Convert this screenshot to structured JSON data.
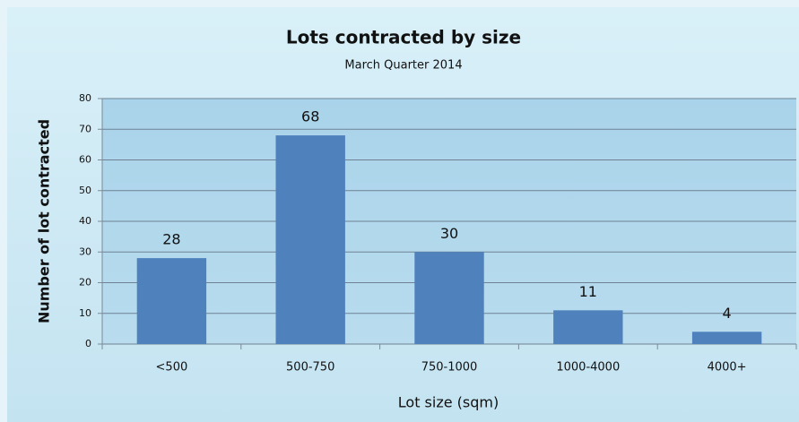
{
  "chart_data": {
    "type": "bar",
    "title": "Lots contracted by size",
    "subtitle": "March Quarter 2014",
    "x_label": "Lot size (sqm)",
    "y_label": "Number of lot contracted",
    "categories": [
      "<500",
      "500-750",
      "750-1000",
      "1000-4000",
      "4000+"
    ],
    "values": [
      28,
      68,
      30,
      11,
      4
    ],
    "color": "#4f81bd",
    "ylim": [
      0,
      80
    ],
    "yticks": [
      0,
      10,
      20,
      30,
      40,
      50,
      60,
      70,
      80
    ],
    "grid": true
  }
}
